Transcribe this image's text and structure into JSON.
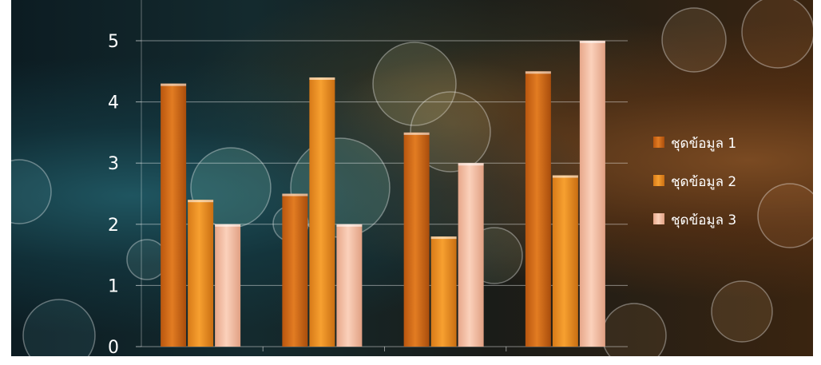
{
  "chart_data": {
    "type": "bar",
    "categories": [
      "",
      "",
      "",
      ""
    ],
    "series": [
      {
        "name": "ชุดข้อมูล 1",
        "values": [
          4.3,
          2.5,
          3.5,
          4.5
        ],
        "color": "#e07a20"
      },
      {
        "name": "ชุดข้อมูล 2",
        "values": [
          2.4,
          4.4,
          1.8,
          2.8
        ],
        "color": "#f39a2e"
      },
      {
        "name": "ชุดข้อมูล 3",
        "values": [
          2.0,
          2.0,
          3.0,
          5.0
        ],
        "color": "#f6c3a6"
      }
    ],
    "title": "",
    "xlabel": "",
    "ylabel": "",
    "ylim": [
      0,
      5
    ],
    "yticks": [
      "0",
      "1",
      "2",
      "3",
      "4",
      "5"
    ],
    "grid": true,
    "legend_position": "right"
  }
}
